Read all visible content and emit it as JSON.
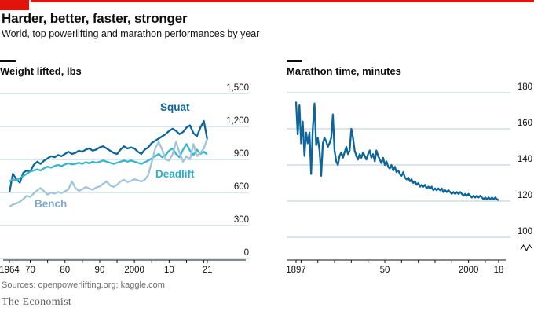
{
  "header": {
    "title": "Harder, better, faster, stronger",
    "subtitle": "World, top powerlifting and marathon performances by year"
  },
  "footer": {
    "sources": "Sources: openpowerlifting.org; kaggle.com",
    "brand": "The Economist"
  },
  "colors": {
    "accent_red": "#E3120B",
    "dark_blue": "#0D6599",
    "cyan": "#36B7CE",
    "light_blue": "#A0C4DC",
    "gridline": "#B9CCD6",
    "axis": "#121212",
    "source_text": "#6E6E6E",
    "brand_text": "#5E5E5E"
  },
  "chart_data": [
    {
      "type": "line",
      "title": "Weight lifted, lbs",
      "ylabel": "Weight lifted, lbs",
      "ylim": [
        0,
        1500
      ],
      "grid": "horizontal",
      "legend": "inline-labels",
      "x": [
        1964,
        1965,
        1966,
        1967,
        1968,
        1969,
        1970,
        1971,
        1972,
        1973,
        1974,
        1975,
        1976,
        1977,
        1978,
        1979,
        1980,
        1981,
        1982,
        1983,
        1984,
        1985,
        1986,
        1987,
        1988,
        1989,
        1990,
        1991,
        1992,
        1993,
        1994,
        1995,
        1996,
        1997,
        1998,
        1999,
        2000,
        2001,
        2002,
        2003,
        2004,
        2005,
        2006,
        2007,
        2008,
        2009,
        2010,
        2011,
        2012,
        2013,
        2014,
        2015,
        2016,
        2017,
        2018,
        2019,
        2020,
        2021
      ],
      "series": [
        {
          "name": "Squat",
          "color": "#0D6599",
          "label_color": "#0D6599",
          "values": [
            600,
            770,
            720,
            690,
            780,
            800,
            790,
            850,
            880,
            860,
            890,
            910,
            930,
            920,
            940,
            930,
            950,
            970,
            950,
            960,
            980,
            970,
            990,
            1000,
            980,
            990,
            1010,
            1020,
            1000,
            980,
            960,
            950,
            990,
            1020,
            1000,
            1010,
            1000,
            970,
            950,
            990,
            1010,
            1050,
            1070,
            1090,
            1110,
            1130,
            1160,
            1180,
            1160,
            1130,
            1150,
            1190,
            1210,
            1140,
            1110,
            1190,
            1250,
            1080
          ]
        },
        {
          "name": "Deadlift",
          "color": "#36B7CE",
          "label_color": "#2AAFC4",
          "values": [
            700,
            720,
            710,
            730,
            750,
            770,
            790,
            800,
            810,
            800,
            820,
            835,
            825,
            840,
            850,
            840,
            855,
            865,
            855,
            860,
            870,
            860,
            875,
            865,
            880,
            870,
            880,
            890,
            880,
            870,
            860,
            870,
            880,
            890,
            880,
            890,
            880,
            870,
            860,
            875,
            890,
            910,
            930,
            950,
            920,
            940,
            980,
            1000,
            950,
            920,
            990,
            1040,
            980,
            940,
            990,
            950,
            970,
            945
          ]
        },
        {
          "name": "Bench",
          "color": "#A0C4DC",
          "label_color": "#7FA9CC",
          "values": [
            470,
            490,
            500,
            515,
            540,
            570,
            560,
            590,
            620,
            640,
            610,
            580,
            600,
            590,
            605,
            595,
            610,
            630,
            700,
            640,
            615,
            630,
            650,
            635,
            625,
            645,
            655,
            680,
            700,
            665,
            650,
            670,
            700,
            715,
            695,
            705,
            720,
            710,
            700,
            715,
            760,
            880,
            1000,
            1060,
            990,
            900,
            890,
            950,
            1060,
            960,
            880,
            930,
            900,
            1040,
            930,
            960,
            1000,
            1090
          ]
        }
      ],
      "yticks": [
        {
          "v": 0,
          "label": "0"
        },
        {
          "v": 300,
          "label": "300"
        },
        {
          "v": 600,
          "label": "600"
        },
        {
          "v": 900,
          "label": "900"
        },
        {
          "v": 1200,
          "label": "1,200"
        },
        {
          "v": 1500,
          "label": "1,500"
        }
      ],
      "xticks": [
        1964,
        1965,
        1970,
        1975,
        1980,
        1985,
        1990,
        1995,
        2000,
        2005,
        2010,
        2015,
        2020,
        2021
      ],
      "xtick_labels": [
        {
          "v": 1964,
          "label": "1964"
        },
        {
          "v": 1970,
          "label": "70"
        },
        {
          "v": 1980,
          "label": "80"
        },
        {
          "v": 1990,
          "label": "90"
        },
        {
          "v": 2000,
          "label": "2000"
        },
        {
          "v": 2010,
          "label": "10"
        },
        {
          "v": 2021,
          "label": "21"
        }
      ]
    },
    {
      "type": "line",
      "title": "Marathon time, minutes",
      "ylabel": "Marathon time, minutes",
      "ylim": [
        100,
        180
      ],
      "axis_break": true,
      "grid": "horizontal",
      "x": [
        1897,
        1898,
        1899,
        1900,
        1901,
        1902,
        1903,
        1904,
        1905,
        1906,
        1907,
        1908,
        1909,
        1910,
        1911,
        1912,
        1913,
        1914,
        1915,
        1916,
        1917,
        1918,
        1919,
        1920,
        1921,
        1922,
        1923,
        1924,
        1925,
        1926,
        1927,
        1928,
        1929,
        1930,
        1931,
        1932,
        1933,
        1934,
        1935,
        1936,
        1937,
        1938,
        1939,
        1940,
        1941,
        1942,
        1943,
        1944,
        1945,
        1946,
        1947,
        1948,
        1949,
        1950,
        1951,
        1952,
        1953,
        1954,
        1955,
        1956,
        1957,
        1958,
        1959,
        1960,
        1961,
        1962,
        1963,
        1964,
        1965,
        1966,
        1967,
        1968,
        1969,
        1970,
        1971,
        1972,
        1973,
        1974,
        1975,
        1976,
        1977,
        1978,
        1979,
        1980,
        1981,
        1982,
        1983,
        1984,
        1985,
        1986,
        1987,
        1988,
        1989,
        1990,
        1991,
        1992,
        1993,
        1994,
        1995,
        1996,
        1997,
        1998,
        1999,
        2000,
        2001,
        2002,
        2003,
        2004,
        2005,
        2006,
        2007,
        2008,
        2009,
        2010,
        2011,
        2012,
        2013,
        2014,
        2015,
        2016,
        2017,
        2018
      ],
      "series": [
        {
          "name": "Marathon time",
          "color": "#0D6599",
          "values": [
            175,
            157,
            173,
            152,
            164,
            145,
            158,
            152,
            158,
            135,
            160,
            174,
            151,
            155,
            148,
            134,
            152,
            155,
            153,
            150,
            152,
            155,
            168,
            148,
            142,
            140,
            145,
            147,
            144,
            147,
            150,
            146,
            148,
            160,
            155,
            148,
            145,
            143,
            146,
            144,
            147,
            145,
            143,
            146,
            148,
            144,
            146,
            142,
            148,
            145,
            143,
            141,
            144,
            140,
            142,
            139,
            138,
            140,
            137,
            139,
            136,
            137,
            135,
            134,
            136,
            133,
            132,
            133,
            131,
            132,
            130,
            131,
            129,
            130,
            128,
            129,
            128,
            129,
            127,
            128,
            127,
            128,
            126,
            127,
            126,
            127,
            126,
            127,
            125,
            126,
            125,
            126,
            125,
            124,
            125,
            124,
            125,
            124,
            125,
            124,
            123,
            124,
            123,
            124,
            123,
            122,
            123,
            122,
            123,
            122,
            123,
            122,
            121,
            122,
            121,
            122,
            121,
            122,
            121,
            122,
            121,
            120.5
          ]
        }
      ],
      "yticks": [
        {
          "v": 100,
          "label": "100"
        },
        {
          "v": 120,
          "label": "120"
        },
        {
          "v": 140,
          "label": "140"
        },
        {
          "v": 160,
          "label": "160"
        },
        {
          "v": 180,
          "label": "180"
        }
      ],
      "xticks": [
        1897,
        1900,
        1910,
        1920,
        1930,
        1940,
        1950,
        1960,
        1970,
        1980,
        1990,
        2000,
        2010,
        2018
      ],
      "xtick_labels": [
        {
          "v": 1897,
          "label": "1897"
        },
        {
          "v": 1950,
          "label": "50"
        },
        {
          "v": 2000,
          "label": "2000"
        },
        {
          "v": 2018,
          "label": "18"
        }
      ]
    }
  ]
}
